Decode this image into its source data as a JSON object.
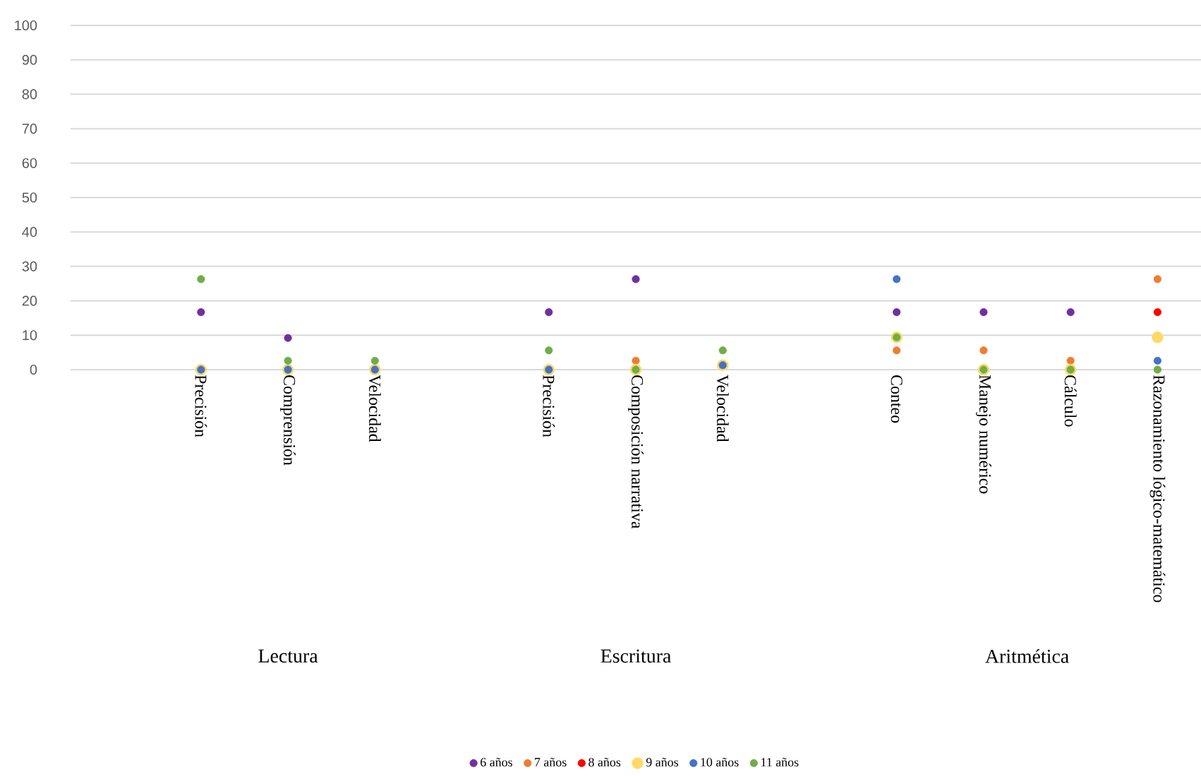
{
  "chart_data": {
    "type": "scatter",
    "categories": [
      null,
      "Precisión",
      "Comprensión",
      "Velocidad",
      null,
      "Precisión",
      "Composición narrativa",
      "Velocidad",
      null,
      "Conteo",
      "Manejo numérico",
      "Cálculo",
      "Razonamiento lógico-matemático"
    ],
    "series": [
      {
        "name": "6 años",
        "color": "#7030a0",
        "values": [
          null,
          16.7,
          9.2,
          null,
          null,
          16.7,
          26.3,
          null,
          null,
          16.7,
          16.7,
          16.7,
          null
        ]
      },
      {
        "name": "7 años",
        "color": "#ed7d31",
        "values": [
          null,
          null,
          null,
          null,
          null,
          null,
          2.6,
          null,
          null,
          5.6,
          5.6,
          2.6,
          26.3
        ]
      },
      {
        "name": "8 años",
        "color": "#ff0000",
        "values": [
          null,
          null,
          null,
          null,
          null,
          null,
          null,
          null,
          null,
          null,
          null,
          null,
          16.7
        ]
      },
      {
        "name": "9 años",
        "color": "#ffd966",
        "values": [
          null,
          0,
          0,
          0,
          null,
          0,
          0,
          1.3,
          null,
          9.4,
          0,
          0,
          9.4
        ]
      },
      {
        "name": "10 años",
        "color": "#4472c4",
        "values": [
          null,
          0,
          0,
          0,
          null,
          0,
          null,
          1.3,
          null,
          26.3,
          null,
          null,
          2.6
        ]
      },
      {
        "name": "11 años",
        "color": "#70ad47",
        "values": [
          null,
          26.3,
          2.6,
          2.6,
          null,
          5.6,
          0,
          5.6,
          null,
          9.4,
          0,
          0,
          0
        ]
      }
    ],
    "annotations": [
      "Lectura",
      "Escritura",
      "Aritmética"
    ],
    "ylim": [
      0,
      100
    ],
    "yticks": [
      0,
      10,
      20,
      30,
      40,
      50,
      60,
      70,
      80,
      90,
      100
    ],
    "grid": "y",
    "legend": "bottom",
    "marker": "circle"
  }
}
